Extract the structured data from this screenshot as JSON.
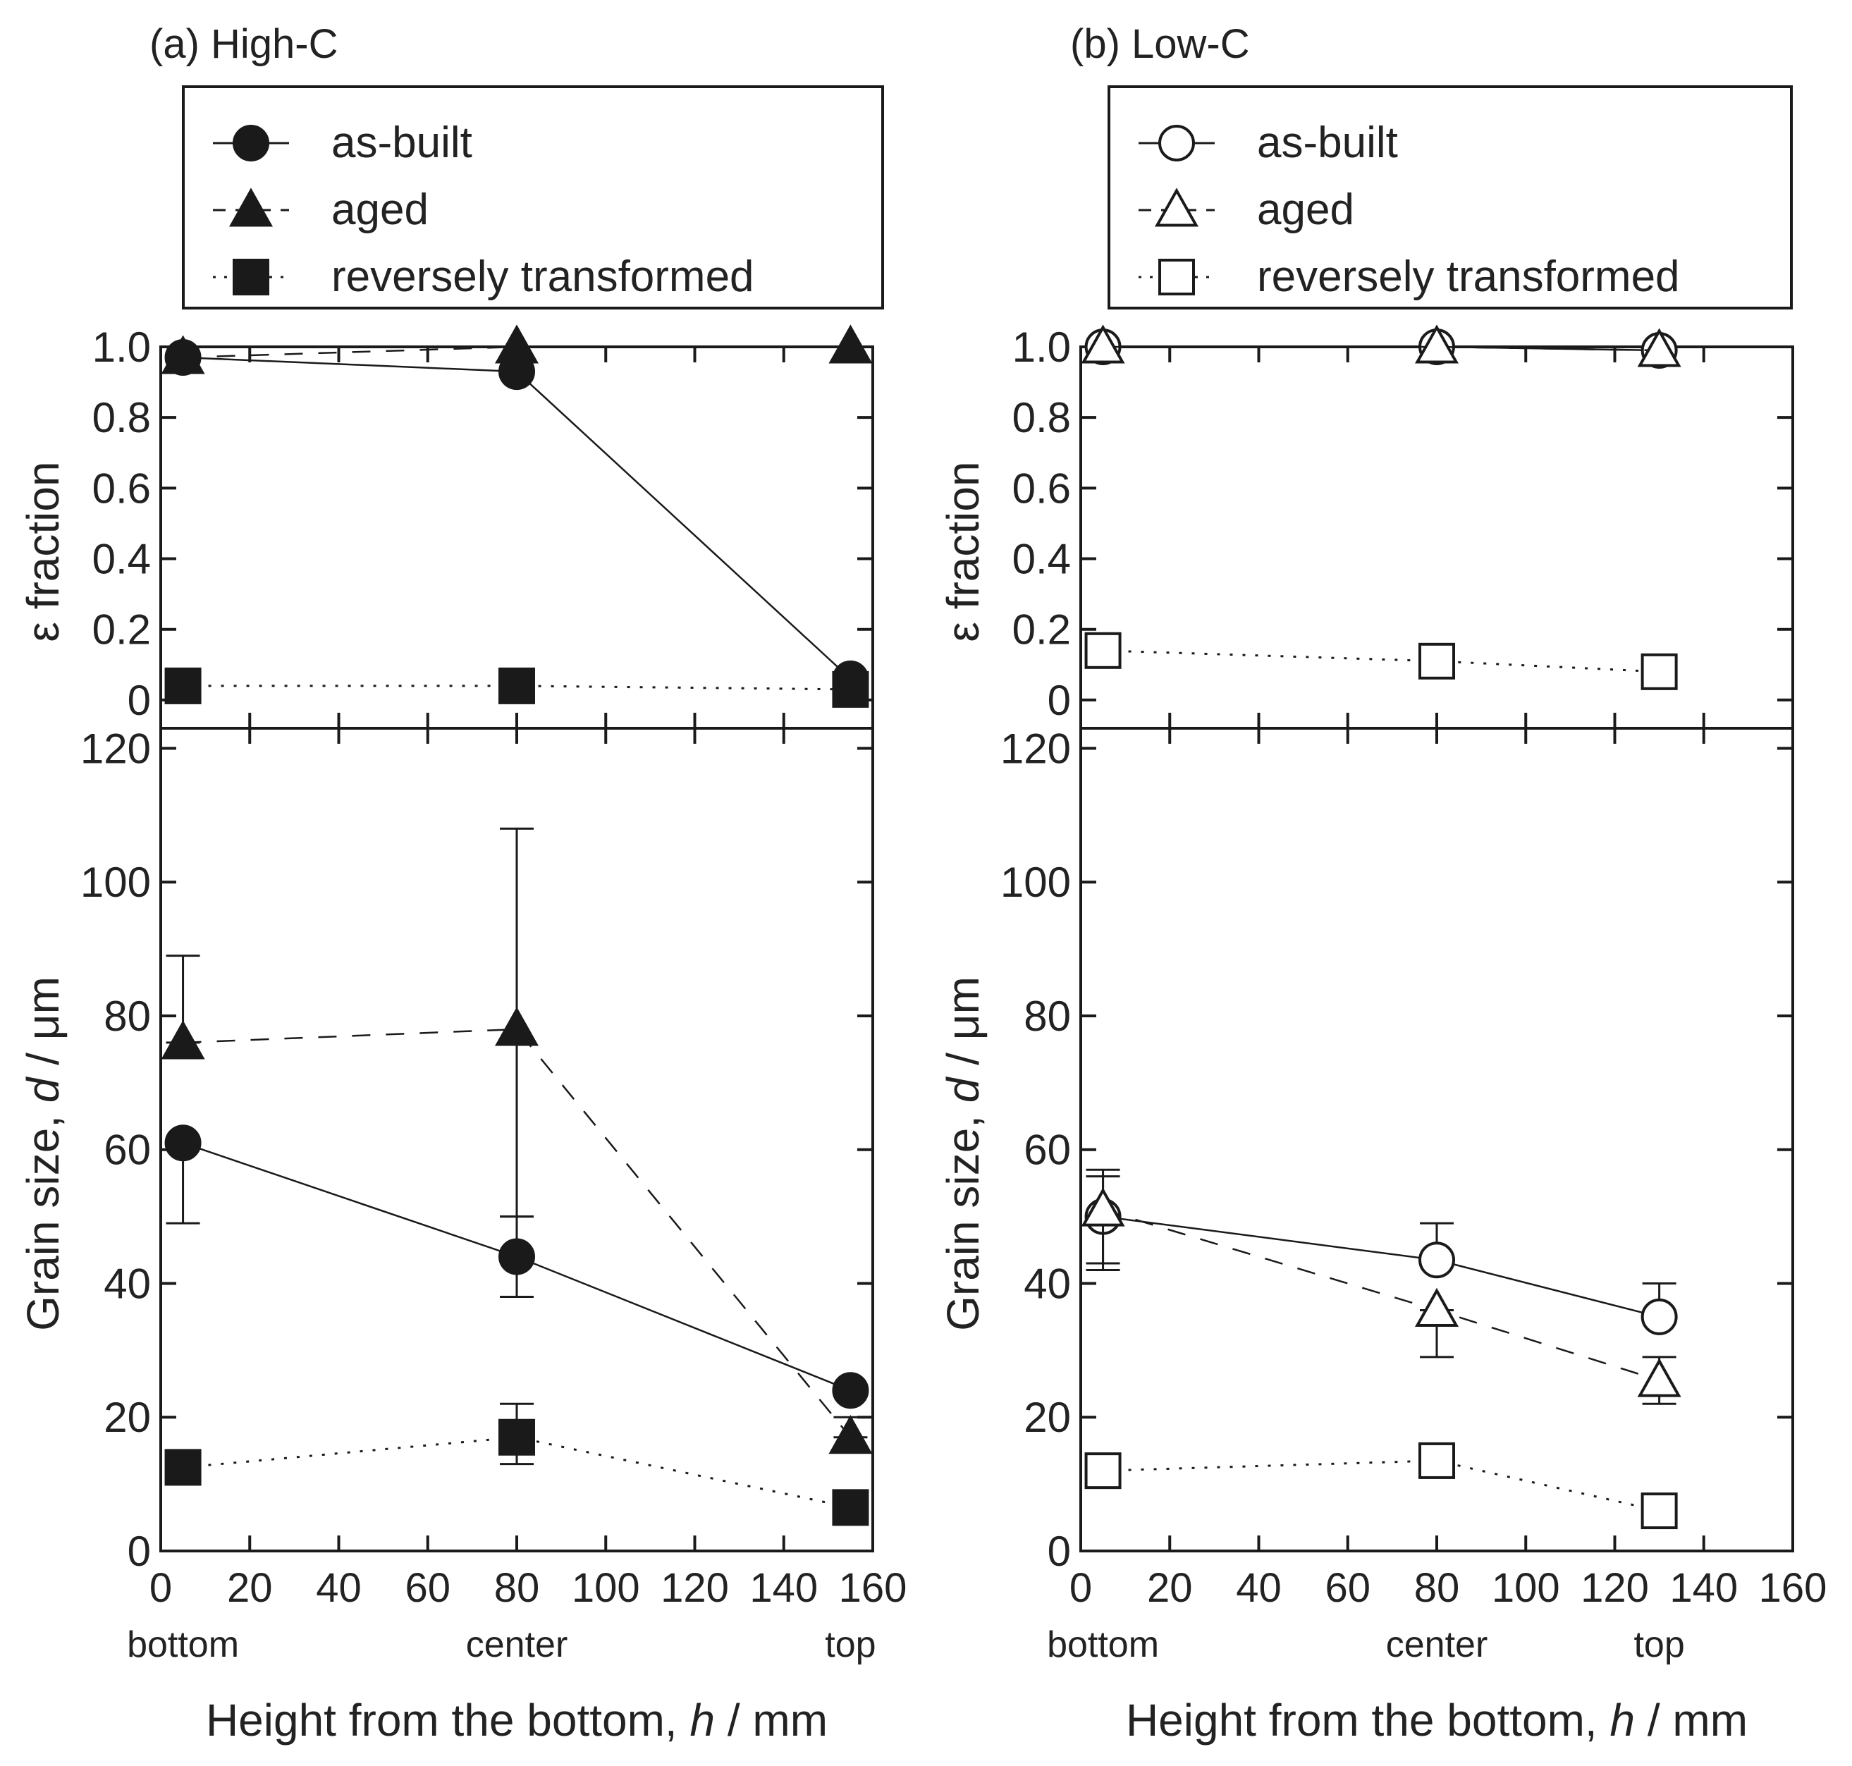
{
  "figure": {
    "x_axis_label_main": "Height from the bottom, ",
    "x_axis_label_var": "h",
    "x_axis_label_unit": " / mm",
    "position_labels": [
      "bottom",
      "center",
      "top"
    ]
  },
  "chart_data": [
    {
      "type": "line",
      "panel_title": "(a) High-C",
      "marker_style": "filled",
      "legend": [
        "as-built",
        "aged",
        "reversely transformed"
      ],
      "x_ticks": [
        0,
        20,
        40,
        60,
        80,
        100,
        120,
        140,
        160
      ],
      "xlim": [
        0,
        160
      ],
      "position_x": [
        5,
        80,
        155
      ],
      "fraction": {
        "ylabel": "ε fraction",
        "ylim": [
          -0.08,
          1.0
        ],
        "y_ticks": [
          0,
          0.2,
          0.4,
          0.6,
          0.8,
          1.0
        ],
        "y_tick_labels": [
          "0",
          "0.2",
          "0.4",
          "0.6",
          "0.8",
          "1.0"
        ],
        "series": [
          {
            "name": "as-built",
            "x": [
              5,
              80,
              155
            ],
            "values": [
              0.97,
              0.93,
              0.06
            ]
          },
          {
            "name": "aged",
            "x": [
              5,
              80,
              155
            ],
            "values": [
              0.97,
              1.0,
              1.0
            ]
          },
          {
            "name": "reversely transformed",
            "x": [
              5,
              80,
              155
            ],
            "values": [
              0.04,
              0.04,
              0.03
            ]
          }
        ]
      },
      "grain": {
        "ylabel_main": "Grain size, ",
        "ylabel_var": "d",
        "ylabel_unit": " / μm",
        "ylim": [
          0,
          123
        ],
        "y_ticks": [
          0,
          20,
          40,
          60,
          80,
          100,
          120
        ],
        "y_tick_labels": [
          "0",
          "20",
          "40",
          "60",
          "80",
          "100",
          "120"
        ],
        "series": [
          {
            "name": "as-built",
            "x": [
              5,
              80,
              155
            ],
            "values": [
              61,
              44,
              24
            ],
            "err_low": [
              49,
              38,
              24
            ],
            "err_high": [
              61,
              50,
              24
            ]
          },
          {
            "name": "aged",
            "x": [
              5,
              80,
              155
            ],
            "values": [
              76,
              78,
              17
            ],
            "err_low": [
              76,
              50,
              17
            ],
            "err_high": [
              89,
              108,
              20
            ]
          },
          {
            "name": "reversely transformed",
            "x": [
              5,
              80,
              155
            ],
            "values": [
              12.5,
              17,
              6.5
            ],
            "err_low": [
              12.5,
              13,
              6.5
            ],
            "err_high": [
              12.5,
              22,
              6.5
            ]
          }
        ]
      }
    },
    {
      "type": "line",
      "panel_title": "(b) Low-C",
      "marker_style": "open",
      "legend": [
        "as-built",
        "aged",
        "reversely transformed"
      ],
      "x_ticks": [
        0,
        20,
        40,
        60,
        80,
        100,
        120,
        140,
        160
      ],
      "xlim": [
        0,
        160
      ],
      "position_x": [
        5,
        80,
        130
      ],
      "fraction": {
        "ylabel": "ε fraction",
        "ylim": [
          -0.08,
          1.0
        ],
        "y_ticks": [
          0,
          0.2,
          0.4,
          0.6,
          0.8,
          1.0
        ],
        "y_tick_labels": [
          "0",
          "0.2",
          "0.4",
          "0.6",
          "0.8",
          "1.0"
        ],
        "series": [
          {
            "name": "as-built",
            "x": [
              5,
              80,
              130
            ],
            "values": [
              1.0,
              1.0,
              0.99
            ]
          },
          {
            "name": "aged",
            "x": [
              5,
              80,
              130
            ],
            "values": [
              1.0,
              1.0,
              0.99
            ]
          },
          {
            "name": "reversely transformed",
            "x": [
              5,
              80,
              130
            ],
            "values": [
              0.14,
              0.11,
              0.08
            ]
          }
        ]
      },
      "grain": {
        "ylabel_main": "Grain size, ",
        "ylabel_var": "d",
        "ylabel_unit": " / μm",
        "ylim": [
          0,
          123
        ],
        "y_ticks": [
          0,
          20,
          40,
          60,
          80,
          100,
          120
        ],
        "y_tick_labels": [
          "0",
          "20",
          "40",
          "60",
          "80",
          "100",
          "120"
        ],
        "series": [
          {
            "name": "as-built",
            "x": [
              5,
              80,
              130
            ],
            "values": [
              50,
              43.5,
              35
            ],
            "err_low": [
              43,
              43.5,
              35
            ],
            "err_high": [
              57,
              49,
              40
            ]
          },
          {
            "name": "aged",
            "x": [
              5,
              80,
              130
            ],
            "values": [
              51,
              36,
              25.5
            ],
            "err_low": [
              42,
              29,
              22
            ],
            "err_high": [
              56,
              36,
              29
            ]
          },
          {
            "name": "reversely transformed",
            "x": [
              5,
              80,
              130
            ],
            "values": [
              12,
              13.5,
              6
            ],
            "err_low": [
              12,
              13.5,
              6
            ],
            "err_high": [
              12,
              13.5,
              6
            ]
          }
        ]
      }
    }
  ]
}
